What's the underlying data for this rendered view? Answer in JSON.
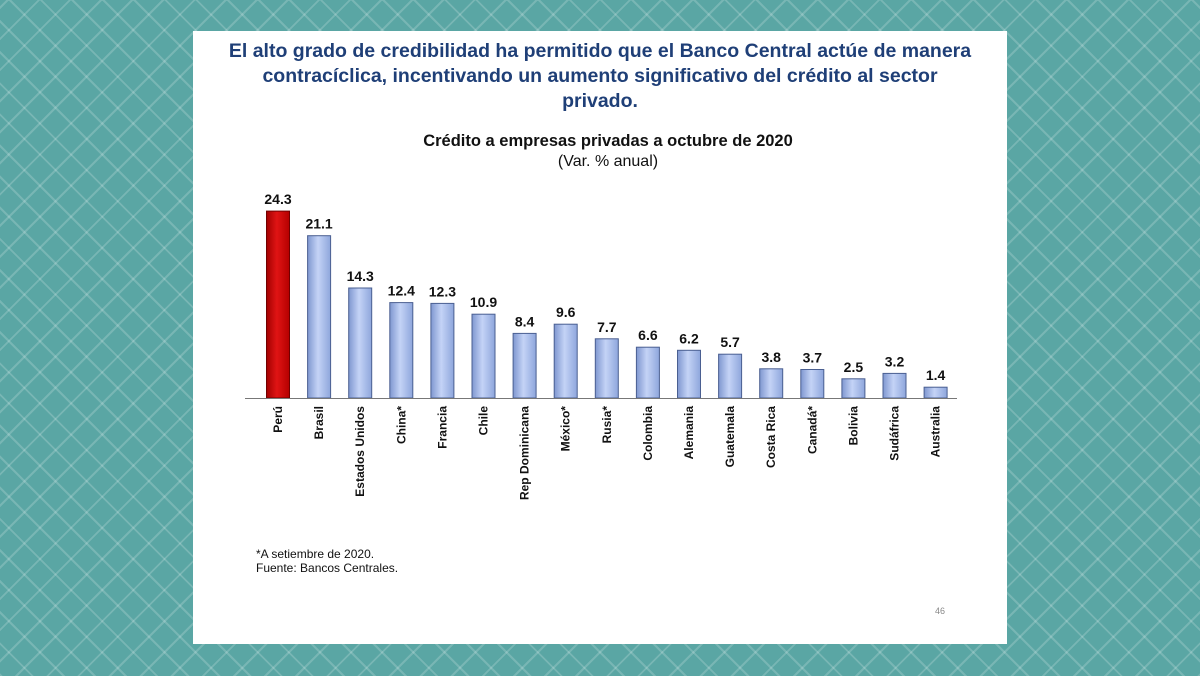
{
  "slide": {
    "headline_lines": [
      "El alto grado de credibilidad ha permitido que el Banco Central actúe de manera",
      "contracíclica, incentivando un aumento significativo del crédito al sector",
      "privado."
    ],
    "footnote": "*A setiembre de 2020.",
    "source": "Fuente: Bancos Centrales.",
    "page_number": "46"
  },
  "chart_data": {
    "type": "bar",
    "title": "Crédito a empresas privadas a octubre de 2020",
    "subtitle": "(Var. % anual)",
    "xlabel": "",
    "ylabel": "",
    "ylim": [
      0,
      26
    ],
    "grid": false,
    "categories": [
      "Perú",
      "Brasil",
      "Estados Unidos",
      "China*",
      "Francia",
      "Chile",
      "Rep Dominicana",
      "México*",
      "Rusia*",
      "Colombia",
      "Alemania",
      "Guatemala",
      "Costa Rica",
      "Canadá*",
      "Bolivia",
      "Sudáfrica",
      "Australia"
    ],
    "values": [
      24.3,
      21.1,
      14.3,
      12.4,
      12.3,
      10.9,
      8.4,
      9.6,
      7.7,
      6.6,
      6.2,
      5.7,
      3.8,
      3.7,
      2.5,
      3.2,
      1.4
    ],
    "value_labels": [
      "24.3",
      "21.1",
      "14.3",
      "12.4",
      "12.3",
      "10.9",
      "8.4",
      "9.6",
      "7.7",
      "6.6",
      "6.2",
      "5.7",
      "3.8",
      "3.7",
      "2.5",
      "3.2",
      "1.4"
    ],
    "highlight_category": "Perú",
    "colors": {
      "highlight": "#cc0000",
      "bar": "#a4b9ea",
      "bar_edge": "#4a5f91"
    }
  }
}
